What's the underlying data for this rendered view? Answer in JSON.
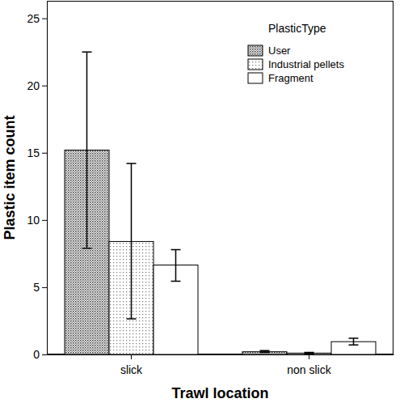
{
  "chart_data": {
    "type": "bar",
    "x_label": "Trawl location",
    "y_label": "Plastic item count",
    "categories": [
      "slick",
      "non slick"
    ],
    "series": [
      {
        "name": "User",
        "color": "#8c8c8c",
        "values": [
          15.2,
          0.2
        ],
        "error_low": [
          7.9,
          0.15
        ],
        "error_high": [
          22.5,
          0.28
        ]
      },
      {
        "name": "Industrial pellets",
        "color": "#c8c8c8",
        "values": [
          8.4,
          0.1
        ],
        "error_low": [
          2.65,
          0.05
        ],
        "error_high": [
          14.2,
          0.15
        ]
      },
      {
        "name": "Fragment",
        "color": "#ffffff",
        "values": [
          6.65,
          0.95
        ],
        "error_low": [
          5.45,
          0.7
        ],
        "error_high": [
          7.8,
          1.2
        ]
      }
    ],
    "ylim": [
      0,
      26.3
    ],
    "yticks": [
      0,
      5,
      10,
      15,
      20,
      25
    ],
    "grid": false,
    "legend": "upper right",
    "legend_title": "PlasticType"
  }
}
